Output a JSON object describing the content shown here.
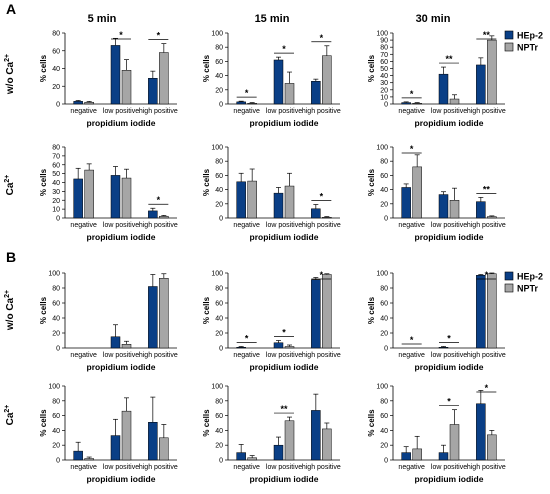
{
  "panels": [
    {
      "letter": "A",
      "columns": [
        "5 min",
        "15 min",
        "30 min"
      ],
      "row_labels": [
        [
          "w/o Ca",
          "2+"
        ],
        [
          "Ca",
          "2+"
        ]
      ],
      "legend": [
        {
          "name": "HEp-2",
          "color": "#0a3f86"
        },
        {
          "name": "NPTr",
          "color": "#a6a6a6"
        }
      ]
    },
    {
      "letter": "B",
      "row_labels": [
        [
          "w/o Ca",
          "2+"
        ],
        [
          "Ca",
          "2+"
        ]
      ],
      "legend": [
        {
          "name": "HEp-2",
          "color": "#0a3f86"
        },
        {
          "name": "NPTr",
          "color": "#a6a6a6"
        }
      ]
    }
  ],
  "chart_data": [
    {
      "type": "bar",
      "panel": "A",
      "row": 0,
      "col": 0,
      "categories": [
        "negative",
        "low positive",
        "high positive"
      ],
      "xlabel": "propidium iodide",
      "ylabel": "% cells",
      "ylim": [
        0,
        80
      ],
      "yticks": [
        0,
        20,
        40,
        60,
        80
      ],
      "series": [
        {
          "name": "HEp-2",
          "values": [
            3,
            66,
            29
          ],
          "errors": [
            1,
            8,
            8
          ]
        },
        {
          "name": "NPTr",
          "values": [
            2,
            38,
            58
          ],
          "errors": [
            1,
            12,
            10
          ]
        }
      ],
      "significance": [
        {
          "category": 1,
          "label": "*"
        },
        {
          "category": 2,
          "label": "*"
        }
      ]
    },
    {
      "type": "bar",
      "panel": "A",
      "row": 0,
      "col": 1,
      "categories": [
        "negative",
        "low positive",
        "high positive"
      ],
      "xlabel": "propidium iodide",
      "ylabel": "% cells",
      "ylim": [
        0,
        100
      ],
      "yticks": [
        0,
        20,
        40,
        60,
        80,
        100
      ],
      "series": [
        {
          "name": "HEp-2",
          "values": [
            3,
            62,
            32
          ],
          "errors": [
            1,
            4,
            3
          ]
        },
        {
          "name": "NPTr",
          "values": [
            1,
            29,
            68
          ],
          "errors": [
            1,
            16,
            14
          ]
        }
      ],
      "significance": [
        {
          "category": 0,
          "label": "*"
        },
        {
          "category": 1,
          "label": "*"
        },
        {
          "category": 2,
          "label": "*"
        }
      ]
    },
    {
      "type": "bar",
      "panel": "A",
      "row": 0,
      "col": 2,
      "categories": [
        "negative",
        "low positive",
        "high positive"
      ],
      "xlabel": "propidium iodide",
      "ylabel": "% cells",
      "ylim": [
        0,
        100
      ],
      "yticks": [
        0,
        10,
        20,
        30,
        40,
        50,
        60,
        70,
        80,
        90,
        100
      ],
      "series": [
        {
          "name": "HEp-2",
          "values": [
            2,
            42,
            55
          ],
          "errors": [
            1,
            10,
            10
          ]
        },
        {
          "name": "NPTr",
          "values": [
            1,
            7,
            90
          ],
          "errors": [
            1,
            6,
            6
          ]
        }
      ],
      "significance": [
        {
          "category": 0,
          "label": "*"
        },
        {
          "category": 1,
          "label": "**"
        },
        {
          "category": 2,
          "label": "**"
        }
      ]
    },
    {
      "type": "bar",
      "panel": "A",
      "row": 1,
      "col": 0,
      "categories": [
        "negative",
        "low positive",
        "high positive"
      ],
      "xlabel": "propidium iodide",
      "ylabel": "% cells",
      "ylim": [
        0,
        80
      ],
      "yticks": [
        0,
        10,
        20,
        30,
        40,
        50,
        60,
        70,
        80
      ],
      "series": [
        {
          "name": "HEp-2",
          "values": [
            44,
            48,
            8
          ],
          "errors": [
            12,
            10,
            3
          ]
        },
        {
          "name": "NPTr",
          "values": [
            54,
            45,
            2
          ],
          "errors": [
            7,
            10,
            1
          ]
        }
      ],
      "significance": [
        {
          "category": 2,
          "label": "*"
        }
      ]
    },
    {
      "type": "bar",
      "panel": "A",
      "row": 1,
      "col": 1,
      "categories": [
        "negative",
        "low positive",
        "high positive"
      ],
      "xlabel": "propidium iodide",
      "ylabel": "% cells",
      "ylim": [
        0,
        100
      ],
      "yticks": [
        0,
        20,
        40,
        60,
        80,
        100
      ],
      "series": [
        {
          "name": "HEp-2",
          "values": [
            51,
            35,
            13
          ],
          "errors": [
            12,
            8,
            6
          ]
        },
        {
          "name": "NPTr",
          "values": [
            52,
            45,
            1
          ],
          "errors": [
            17,
            18,
            1
          ]
        }
      ],
      "significance": [
        {
          "category": 2,
          "label": "*"
        }
      ]
    },
    {
      "type": "bar",
      "panel": "A",
      "row": 1,
      "col": 2,
      "categories": [
        "negative",
        "low positive",
        "high positive"
      ],
      "xlabel": "propidium iodide",
      "ylabel": "% cells",
      "ylim": [
        0,
        100
      ],
      "yticks": [
        0,
        20,
        40,
        60,
        80,
        100
      ],
      "series": [
        {
          "name": "HEp-2",
          "values": [
            43,
            33,
            23
          ],
          "errors": [
            5,
            4,
            6
          ]
        },
        {
          "name": "NPTr",
          "values": [
            72,
            25,
            2
          ],
          "errors": [
            17,
            17,
            1
          ]
        }
      ],
      "significance": [
        {
          "category": 0,
          "label": "*"
        },
        {
          "category": 2,
          "label": "**"
        }
      ]
    },
    {
      "type": "bar",
      "panel": "B",
      "row": 0,
      "col": 0,
      "categories": [
        "negative",
        "low positive",
        "high positive"
      ],
      "xlabel": "propidium iodide",
      "ylabel": "% cells",
      "ylim": [
        0,
        100
      ],
      "yticks": [
        0,
        20,
        40,
        60,
        80,
        100
      ],
      "series": [
        {
          "name": "HEp-2",
          "values": [
            0,
            15,
            82
          ],
          "errors": [
            0,
            16,
            16
          ]
        },
        {
          "name": "NPTr",
          "values": [
            0,
            5,
            93
          ],
          "errors": [
            0,
            4,
            6
          ]
        }
      ],
      "significance": []
    },
    {
      "type": "bar",
      "panel": "B",
      "row": 0,
      "col": 1,
      "categories": [
        "negative",
        "low positive",
        "high positive"
      ],
      "xlabel": "propidium iodide",
      "ylabel": "% cells",
      "ylim": [
        0,
        100
      ],
      "yticks": [
        0,
        20,
        40,
        60,
        80,
        100
      ],
      "series": [
        {
          "name": "HEp-2",
          "values": [
            1,
            7,
            91
          ],
          "errors": [
            1,
            3,
            3
          ]
        },
        {
          "name": "NPTr",
          "values": [
            0,
            2,
            98
          ],
          "errors": [
            0,
            2,
            1
          ]
        }
      ],
      "significance": [
        {
          "category": 0,
          "label": "*"
        },
        {
          "category": 1,
          "label": "*"
        },
        {
          "category": 2,
          "label": "*"
        }
      ]
    },
    {
      "type": "bar",
      "panel": "B",
      "row": 0,
      "col": 2,
      "categories": [
        "negative",
        "low positive",
        "high positive"
      ],
      "xlabel": "propidium iodide",
      "ylabel": "% cells",
      "ylim": [
        0,
        100
      ],
      "yticks": [
        0,
        20,
        40,
        60,
        80,
        100
      ],
      "series": [
        {
          "name": "HEp-2",
          "values": [
            0,
            1,
            97
          ],
          "errors": [
            0,
            1,
            1
          ]
        },
        {
          "name": "NPTr",
          "values": [
            0,
            0,
            99
          ],
          "errors": [
            0,
            0,
            1
          ]
        }
      ],
      "significance": [
        {
          "category": 0,
          "label": "*"
        },
        {
          "category": 1,
          "label": "*"
        },
        {
          "category": 2,
          "label": "*"
        }
      ]
    },
    {
      "type": "bar",
      "panel": "B",
      "row": 1,
      "col": 0,
      "categories": [
        "negative",
        "low positive",
        "high positive"
      ],
      "xlabel": "propidium iodide",
      "ylabel": "% cells",
      "ylim": [
        0,
        100
      ],
      "yticks": [
        0,
        20,
        40,
        60,
        80,
        100
      ],
      "series": [
        {
          "name": "HEp-2",
          "values": [
            12,
            33,
            51
          ],
          "errors": [
            12,
            22,
            34
          ]
        },
        {
          "name": "NPTr",
          "values": [
            2,
            66,
            30
          ],
          "errors": [
            2,
            18,
            18
          ]
        }
      ],
      "significance": []
    },
    {
      "type": "bar",
      "panel": "B",
      "row": 1,
      "col": 1,
      "categories": [
        "negative",
        "low positive",
        "high positive"
      ],
      "xlabel": "propidium iodide",
      "ylabel": "% cells",
      "ylim": [
        0,
        100
      ],
      "yticks": [
        0,
        20,
        40,
        60,
        80,
        100
      ],
      "series": [
        {
          "name": "HEp-2",
          "values": [
            10,
            20,
            67
          ],
          "errors": [
            11,
            11,
            22
          ]
        },
        {
          "name": "NPTr",
          "values": [
            3,
            53,
            42
          ],
          "errors": [
            3,
            5,
            8
          ]
        }
      ],
      "significance": [
        {
          "category": 1,
          "label": "**"
        }
      ]
    },
    {
      "type": "bar",
      "panel": "B",
      "row": 1,
      "col": 2,
      "categories": [
        "negative",
        "low positive",
        "high positive"
      ],
      "xlabel": "propidium iodide",
      "ylabel": "% cells",
      "ylim": [
        0,
        100
      ],
      "yticks": [
        0,
        20,
        40,
        60,
        80,
        100
      ],
      "series": [
        {
          "name": "HEp-2",
          "values": [
            10,
            10,
            76
          ],
          "errors": [
            8,
            10,
            18
          ]
        },
        {
          "name": "NPTr",
          "values": [
            15,
            48,
            34
          ],
          "errors": [
            17,
            20,
            6
          ]
        }
      ],
      "significance": [
        {
          "category": 1,
          "label": "*"
        },
        {
          "category": 2,
          "label": "*"
        }
      ]
    }
  ]
}
